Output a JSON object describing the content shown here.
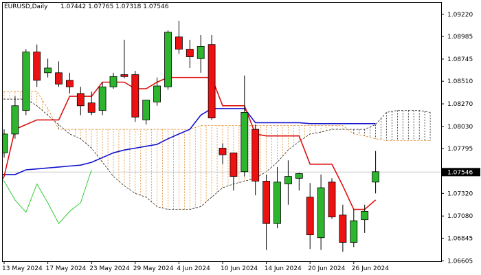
{
  "header": {
    "symbol": "EURUSD,Daily",
    "ohlc": "1.07442 1.07765 1.07318 1.07546"
  },
  "colors": {
    "bull": "#2db52d",
    "bear": "#ee1111",
    "tenkan": "#dd1111",
    "kijun": "#1111cc",
    "chikou": "#33cc33",
    "cloud_orange": "#e08a2a",
    "cloud_dark": "#222222",
    "price_tag_bg": "#000000",
    "price_tag_text": "#ffffff"
  },
  "chart_data": {
    "type": "candlestick",
    "title": "",
    "ylim": [
      1.066,
      1.0935
    ],
    "y_ticks": [
      "1.09220",
      "1.08985",
      "1.08745",
      "1.08510",
      "1.08270",
      "1.08030",
      "1.07795",
      "1.07320",
      "1.07080",
      "1.06845",
      "1.06605"
    ],
    "current_price_label": "1.07546",
    "current_price": 1.07546,
    "x_labels": [
      {
        "i": 0,
        "label": "13 May 2024"
      },
      {
        "i": 4,
        "label": "17 May 2024"
      },
      {
        "i": 8,
        "label": "23 May 2024"
      },
      {
        "i": 12,
        "label": "29 May 2024"
      },
      {
        "i": 16,
        "label": "4 Jun 2024"
      },
      {
        "i": 20,
        "label": "10 Jun 2024"
      },
      {
        "i": 24,
        "label": "14 Jun 2024"
      },
      {
        "i": 28,
        "label": "20 Jun 2024"
      },
      {
        "i": 32,
        "label": "26 Jun 2024"
      }
    ],
    "candles": [
      {
        "o": 1.0775,
        "h": 1.08,
        "l": 1.077,
        "c": 1.0795
      },
      {
        "o": 1.0795,
        "h": 1.0835,
        "l": 1.079,
        "c": 1.0825
      },
      {
        "o": 1.082,
        "h": 1.0885,
        "l": 1.0815,
        "c": 1.0882
      },
      {
        "o": 1.0882,
        "h": 1.089,
        "l": 1.0845,
        "c": 1.0852
      },
      {
        "o": 1.086,
        "h": 1.0875,
        "l": 1.0855,
        "c": 1.0865
      },
      {
        "o": 1.086,
        "h": 1.0872,
        "l": 1.0845,
        "c": 1.0848
      },
      {
        "o": 1.0852,
        "h": 1.086,
        "l": 1.0838,
        "c": 1.0845
      },
      {
        "o": 1.0838,
        "h": 1.0845,
        "l": 1.0815,
        "c": 1.0825
      },
      {
        "o": 1.0828,
        "h": 1.084,
        "l": 1.0815,
        "c": 1.0818
      },
      {
        "o": 1.082,
        "h": 1.085,
        "l": 1.0815,
        "c": 1.0845
      },
      {
        "o": 1.0845,
        "h": 1.086,
        "l": 1.0843,
        "c": 1.0856
      },
      {
        "o": 1.0858,
        "h": 1.0895,
        "l": 1.0854,
        "c": 1.0856
      },
      {
        "o": 1.0858,
        "h": 1.0862,
        "l": 1.0808,
        "c": 1.0813
      },
      {
        "o": 1.081,
        "h": 1.083,
        "l": 1.0805,
        "c": 1.0831
      },
      {
        "o": 1.0829,
        "h": 1.0855,
        "l": 1.0825,
        "c": 1.0846
      },
      {
        "o": 1.0845,
        "h": 1.0905,
        "l": 1.0842,
        "c": 1.0903
      },
      {
        "o": 1.0898,
        "h": 1.0915,
        "l": 1.088,
        "c": 1.0885
      },
      {
        "o": 1.0885,
        "h": 1.0895,
        "l": 1.0865,
        "c": 1.0877
      },
      {
        "o": 1.0875,
        "h": 1.09,
        "l": 1.086,
        "c": 1.0888
      },
      {
        "o": 1.089,
        "h": 1.09,
        "l": 1.081,
        "c": 1.0812
      },
      {
        "o": 1.078,
        "h": 1.0785,
        "l": 1.0763,
        "c": 1.0773
      },
      {
        "o": 1.0775,
        "h": 1.0775,
        "l": 1.0735,
        "c": 1.075
      },
      {
        "o": 1.0755,
        "h": 1.0857,
        "l": 1.075,
        "c": 1.0818
      },
      {
        "o": 1.08,
        "h": 1.0805,
        "l": 1.073,
        "c": 1.0745
      },
      {
        "o": 1.0745,
        "h": 1.0752,
        "l": 1.0672,
        "c": 1.07
      },
      {
        "o": 1.07,
        "h": 1.076,
        "l": 1.0695,
        "c": 1.0744
      },
      {
        "o": 1.0742,
        "h": 1.0767,
        "l": 1.072,
        "c": 1.075
      },
      {
        "o": 1.0748,
        "h": 1.0754,
        "l": 1.0735,
        "c": 1.0753
      },
      {
        "o": 1.0728,
        "h": 1.0743,
        "l": 1.0673,
        "c": 1.0688
      },
      {
        "o": 1.0685,
        "h": 1.0752,
        "l": 1.0672,
        "c": 1.0738
      },
      {
        "o": 1.0744,
        "h": 1.0748,
        "l": 1.0705,
        "c": 1.0707
      },
      {
        "o": 1.0709,
        "h": 1.072,
        "l": 1.067,
        "c": 1.068
      },
      {
        "o": 1.068,
        "h": 1.0715,
        "l": 1.0675,
        "c": 1.0703
      },
      {
        "o": 1.0704,
        "h": 1.072,
        "l": 1.069,
        "c": 1.0713
      },
      {
        "o": 1.0744,
        "h": 1.0777,
        "l": 1.0732,
        "c": 1.0755
      }
    ],
    "tenkan": [
      [
        -1,
        1.073
      ],
      [
        0,
        1.075
      ],
      [
        1,
        1.08
      ],
      [
        3,
        1.081
      ],
      [
        4,
        1.081
      ],
      [
        5,
        1.081
      ],
      [
        6,
        1.0835
      ],
      [
        7,
        1.0835
      ],
      [
        8,
        1.0835
      ],
      [
        9,
        1.085
      ],
      [
        10,
        1.085
      ],
      [
        11,
        1.085
      ],
      [
        12,
        1.0843
      ],
      [
        13,
        1.0843
      ],
      [
        14,
        1.085
      ],
      [
        15,
        1.0855
      ],
      [
        16,
        1.0855
      ],
      [
        17,
        1.0855
      ],
      [
        18,
        1.0855
      ],
      [
        19,
        1.0855
      ],
      [
        20,
        1.0825
      ],
      [
        21,
        1.0825
      ],
      [
        22,
        1.0825
      ],
      [
        23,
        1.0795
      ],
      [
        24,
        1.0793
      ],
      [
        25,
        1.0793
      ],
      [
        26,
        1.0793
      ],
      [
        27,
        1.0793
      ],
      [
        28,
        1.0763
      ],
      [
        29,
        1.0763
      ],
      [
        30,
        1.0763
      ],
      [
        31,
        1.074
      ],
      [
        32,
        1.0715
      ],
      [
        33,
        1.0715
      ],
      [
        34,
        1.0725
      ]
    ],
    "kijun": [
      [
        -1,
        1.0752
      ],
      [
        0,
        1.0752
      ],
      [
        1,
        1.0752
      ],
      [
        2,
        1.0757
      ],
      [
        3,
        1.0758
      ],
      [
        4,
        1.0759
      ],
      [
        5,
        1.076
      ],
      [
        6,
        1.0761
      ],
      [
        7,
        1.0762
      ],
      [
        8,
        1.0765
      ],
      [
        9,
        1.077
      ],
      [
        10,
        1.0775
      ],
      [
        11,
        1.0778
      ],
      [
        12,
        1.078
      ],
      [
        13,
        1.0782
      ],
      [
        14,
        1.0784
      ],
      [
        15,
        1.079
      ],
      [
        16,
        1.0795
      ],
      [
        17,
        1.08
      ],
      [
        18,
        1.0815
      ],
      [
        19,
        1.0822
      ],
      [
        20,
        1.0822
      ],
      [
        21,
        1.0822
      ],
      [
        22,
        1.0822
      ],
      [
        23,
        1.0807
      ],
      [
        24,
        1.0807
      ],
      [
        25,
        1.0807
      ],
      [
        26,
        1.0807
      ],
      [
        27,
        1.0807
      ],
      [
        28,
        1.0806
      ],
      [
        29,
        1.0806
      ],
      [
        30,
        1.0806
      ],
      [
        31,
        1.0806
      ],
      [
        32,
        1.0806
      ],
      [
        33,
        1.0806
      ],
      [
        34,
        1.0806
      ]
    ],
    "chikou": [
      [
        -1,
        1.075
      ],
      [
        0,
        1.0745
      ],
      [
        1,
        1.0725
      ],
      [
        2,
        1.0712
      ],
      [
        3,
        1.0742
      ],
      [
        4,
        1.0722
      ],
      [
        5,
        1.07
      ],
      [
        6,
        1.0713
      ],
      [
        7,
        1.0722
      ],
      [
        8,
        1.0757
      ]
    ],
    "span_a": [
      [
        -1,
        1.0832
      ],
      [
        2,
        1.0832
      ],
      [
        3,
        1.0825
      ],
      [
        4,
        1.0815
      ],
      [
        5,
        1.0805
      ],
      [
        6,
        1.0795
      ],
      [
        7,
        1.079
      ],
      [
        8,
        1.078
      ],
      [
        9,
        1.0765
      ],
      [
        10,
        1.075
      ],
      [
        11,
        1.074
      ],
      [
        12,
        1.0732
      ],
      [
        13,
        1.0728
      ],
      [
        14,
        1.0718
      ],
      [
        15,
        1.0715
      ],
      [
        16,
        1.0715
      ],
      [
        17,
        1.0715
      ],
      [
        18,
        1.0718
      ],
      [
        19,
        1.0728
      ],
      [
        20,
        1.0738
      ],
      [
        21,
        1.0742
      ],
      [
        22,
        1.0745
      ],
      [
        23,
        1.0748
      ],
      [
        24,
        1.0755
      ],
      [
        25,
        1.0765
      ],
      [
        26,
        1.0778
      ],
      [
        27,
        1.0787
      ],
      [
        28,
        1.0795
      ],
      [
        29,
        1.0797
      ],
      [
        30,
        1.08
      ],
      [
        31,
        1.08
      ],
      [
        32,
        1.08
      ],
      [
        33,
        1.08
      ],
      [
        34,
        1.0805
      ],
      [
        35,
        1.0818
      ],
      [
        36,
        1.082
      ],
      [
        37,
        1.082
      ],
      [
        38,
        1.082
      ],
      [
        39,
        1.0818
      ]
    ],
    "span_b": [
      [
        -1,
        1.084
      ],
      [
        3,
        1.084
      ],
      [
        4,
        1.0822
      ],
      [
        5,
        1.08
      ],
      [
        6,
        1.08
      ],
      [
        7,
        1.08
      ],
      [
        8,
        1.08
      ],
      [
        9,
        1.08
      ],
      [
        10,
        1.08
      ],
      [
        11,
        1.08
      ],
      [
        12,
        1.08
      ],
      [
        13,
        1.08
      ],
      [
        14,
        1.08
      ],
      [
        15,
        1.08
      ],
      [
        16,
        1.08
      ],
      [
        17,
        1.08
      ],
      [
        18,
        1.0804
      ],
      [
        19,
        1.0804
      ],
      [
        20,
        1.0804
      ],
      [
        21,
        1.0804
      ],
      [
        22,
        1.0804
      ],
      [
        23,
        1.0804
      ],
      [
        24,
        1.0804
      ],
      [
        25,
        1.0804
      ],
      [
        26,
        1.0804
      ],
      [
        27,
        1.0804
      ],
      [
        28,
        1.0804
      ],
      [
        29,
        1.0804
      ],
      [
        30,
        1.0804
      ],
      [
        31,
        1.0804
      ],
      [
        32,
        1.0795
      ],
      [
        33,
        1.0793
      ],
      [
        34,
        1.079
      ],
      [
        35,
        1.0788
      ],
      [
        36,
        1.0788
      ],
      [
        37,
        1.0788
      ],
      [
        38,
        1.0788
      ],
      [
        39,
        1.0788
      ]
    ]
  }
}
